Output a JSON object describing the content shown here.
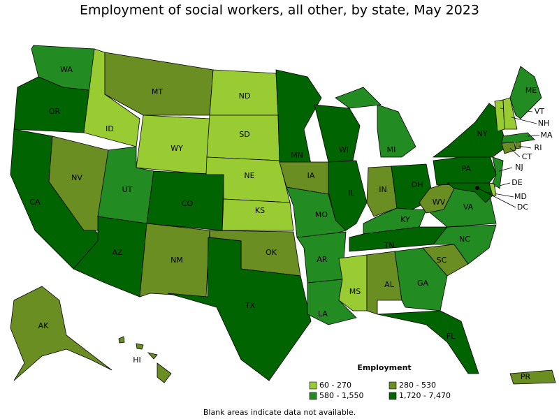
{
  "title": "Employment of social workers, all other, by state, May 2023",
  "legend": {
    "title": "Employment",
    "items": [
      {
        "label": "60 - 270",
        "color": "#99cc33"
      },
      {
        "label": "280 - 530",
        "color": "#6b8e23"
      },
      {
        "label": "580 - 1,550",
        "color": "#228b22"
      },
      {
        "label": "1,720 - 7,470",
        "color": "#006400"
      }
    ]
  },
  "states": [
    {
      "abbr": "WA",
      "class": 2
    },
    {
      "abbr": "OR",
      "class": 3
    },
    {
      "abbr": "CA",
      "class": 3
    },
    {
      "abbr": "NV",
      "class": 1
    },
    {
      "abbr": "ID",
      "class": 0
    },
    {
      "abbr": "MT",
      "class": 1
    },
    {
      "abbr": "WY",
      "class": 0
    },
    {
      "abbr": "UT",
      "class": 2
    },
    {
      "abbr": "CO",
      "class": 3
    },
    {
      "abbr": "AZ",
      "class": 3
    },
    {
      "abbr": "NM",
      "class": 1
    },
    {
      "abbr": "ND",
      "class": 0
    },
    {
      "abbr": "SD",
      "class": 0
    },
    {
      "abbr": "NE",
      "class": 0
    },
    {
      "abbr": "KS",
      "class": 0
    },
    {
      "abbr": "OK",
      "class": 1
    },
    {
      "abbr": "TX",
      "class": 3
    },
    {
      "abbr": "MN",
      "class": 3
    },
    {
      "abbr": "IA",
      "class": 1
    },
    {
      "abbr": "MO",
      "class": 2
    },
    {
      "abbr": "AR",
      "class": 2
    },
    {
      "abbr": "LA",
      "class": 2
    },
    {
      "abbr": "WI",
      "class": 3
    },
    {
      "abbr": "IL",
      "class": 3
    },
    {
      "abbr": "MI",
      "class": 2
    },
    {
      "abbr": "IN",
      "class": 1
    },
    {
      "abbr": "OH",
      "class": 3
    },
    {
      "abbr": "KY",
      "class": 2
    },
    {
      "abbr": "TN",
      "class": 3
    },
    {
      "abbr": "MS",
      "class": 0
    },
    {
      "abbr": "AL",
      "class": 1
    },
    {
      "abbr": "GA",
      "class": 2
    },
    {
      "abbr": "FL",
      "class": 3
    },
    {
      "abbr": "SC",
      "class": 1
    },
    {
      "abbr": "NC",
      "class": 2
    },
    {
      "abbr": "VA",
      "class": 2
    },
    {
      "abbr": "WV",
      "class": 1
    },
    {
      "abbr": "PA",
      "class": 3
    },
    {
      "abbr": "NY",
      "class": 3
    },
    {
      "abbr": "MD",
      "class": 3
    },
    {
      "abbr": "DE",
      "class": 0
    },
    {
      "abbr": "DC",
      "class": 3
    },
    {
      "abbr": "NJ",
      "class": 2
    },
    {
      "abbr": "CT",
      "class": 1
    },
    {
      "abbr": "RI",
      "class": 1
    },
    {
      "abbr": "MA",
      "class": 2
    },
    {
      "abbr": "VT",
      "class": 0
    },
    {
      "abbr": "NH",
      "class": 0
    },
    {
      "abbr": "ME",
      "class": 2
    },
    {
      "abbr": "AK",
      "class": 1
    },
    {
      "abbr": "HI",
      "class": 1
    },
    {
      "abbr": "PR",
      "class": 1
    }
  ],
  "note": "Blank areas indicate data not available."
}
